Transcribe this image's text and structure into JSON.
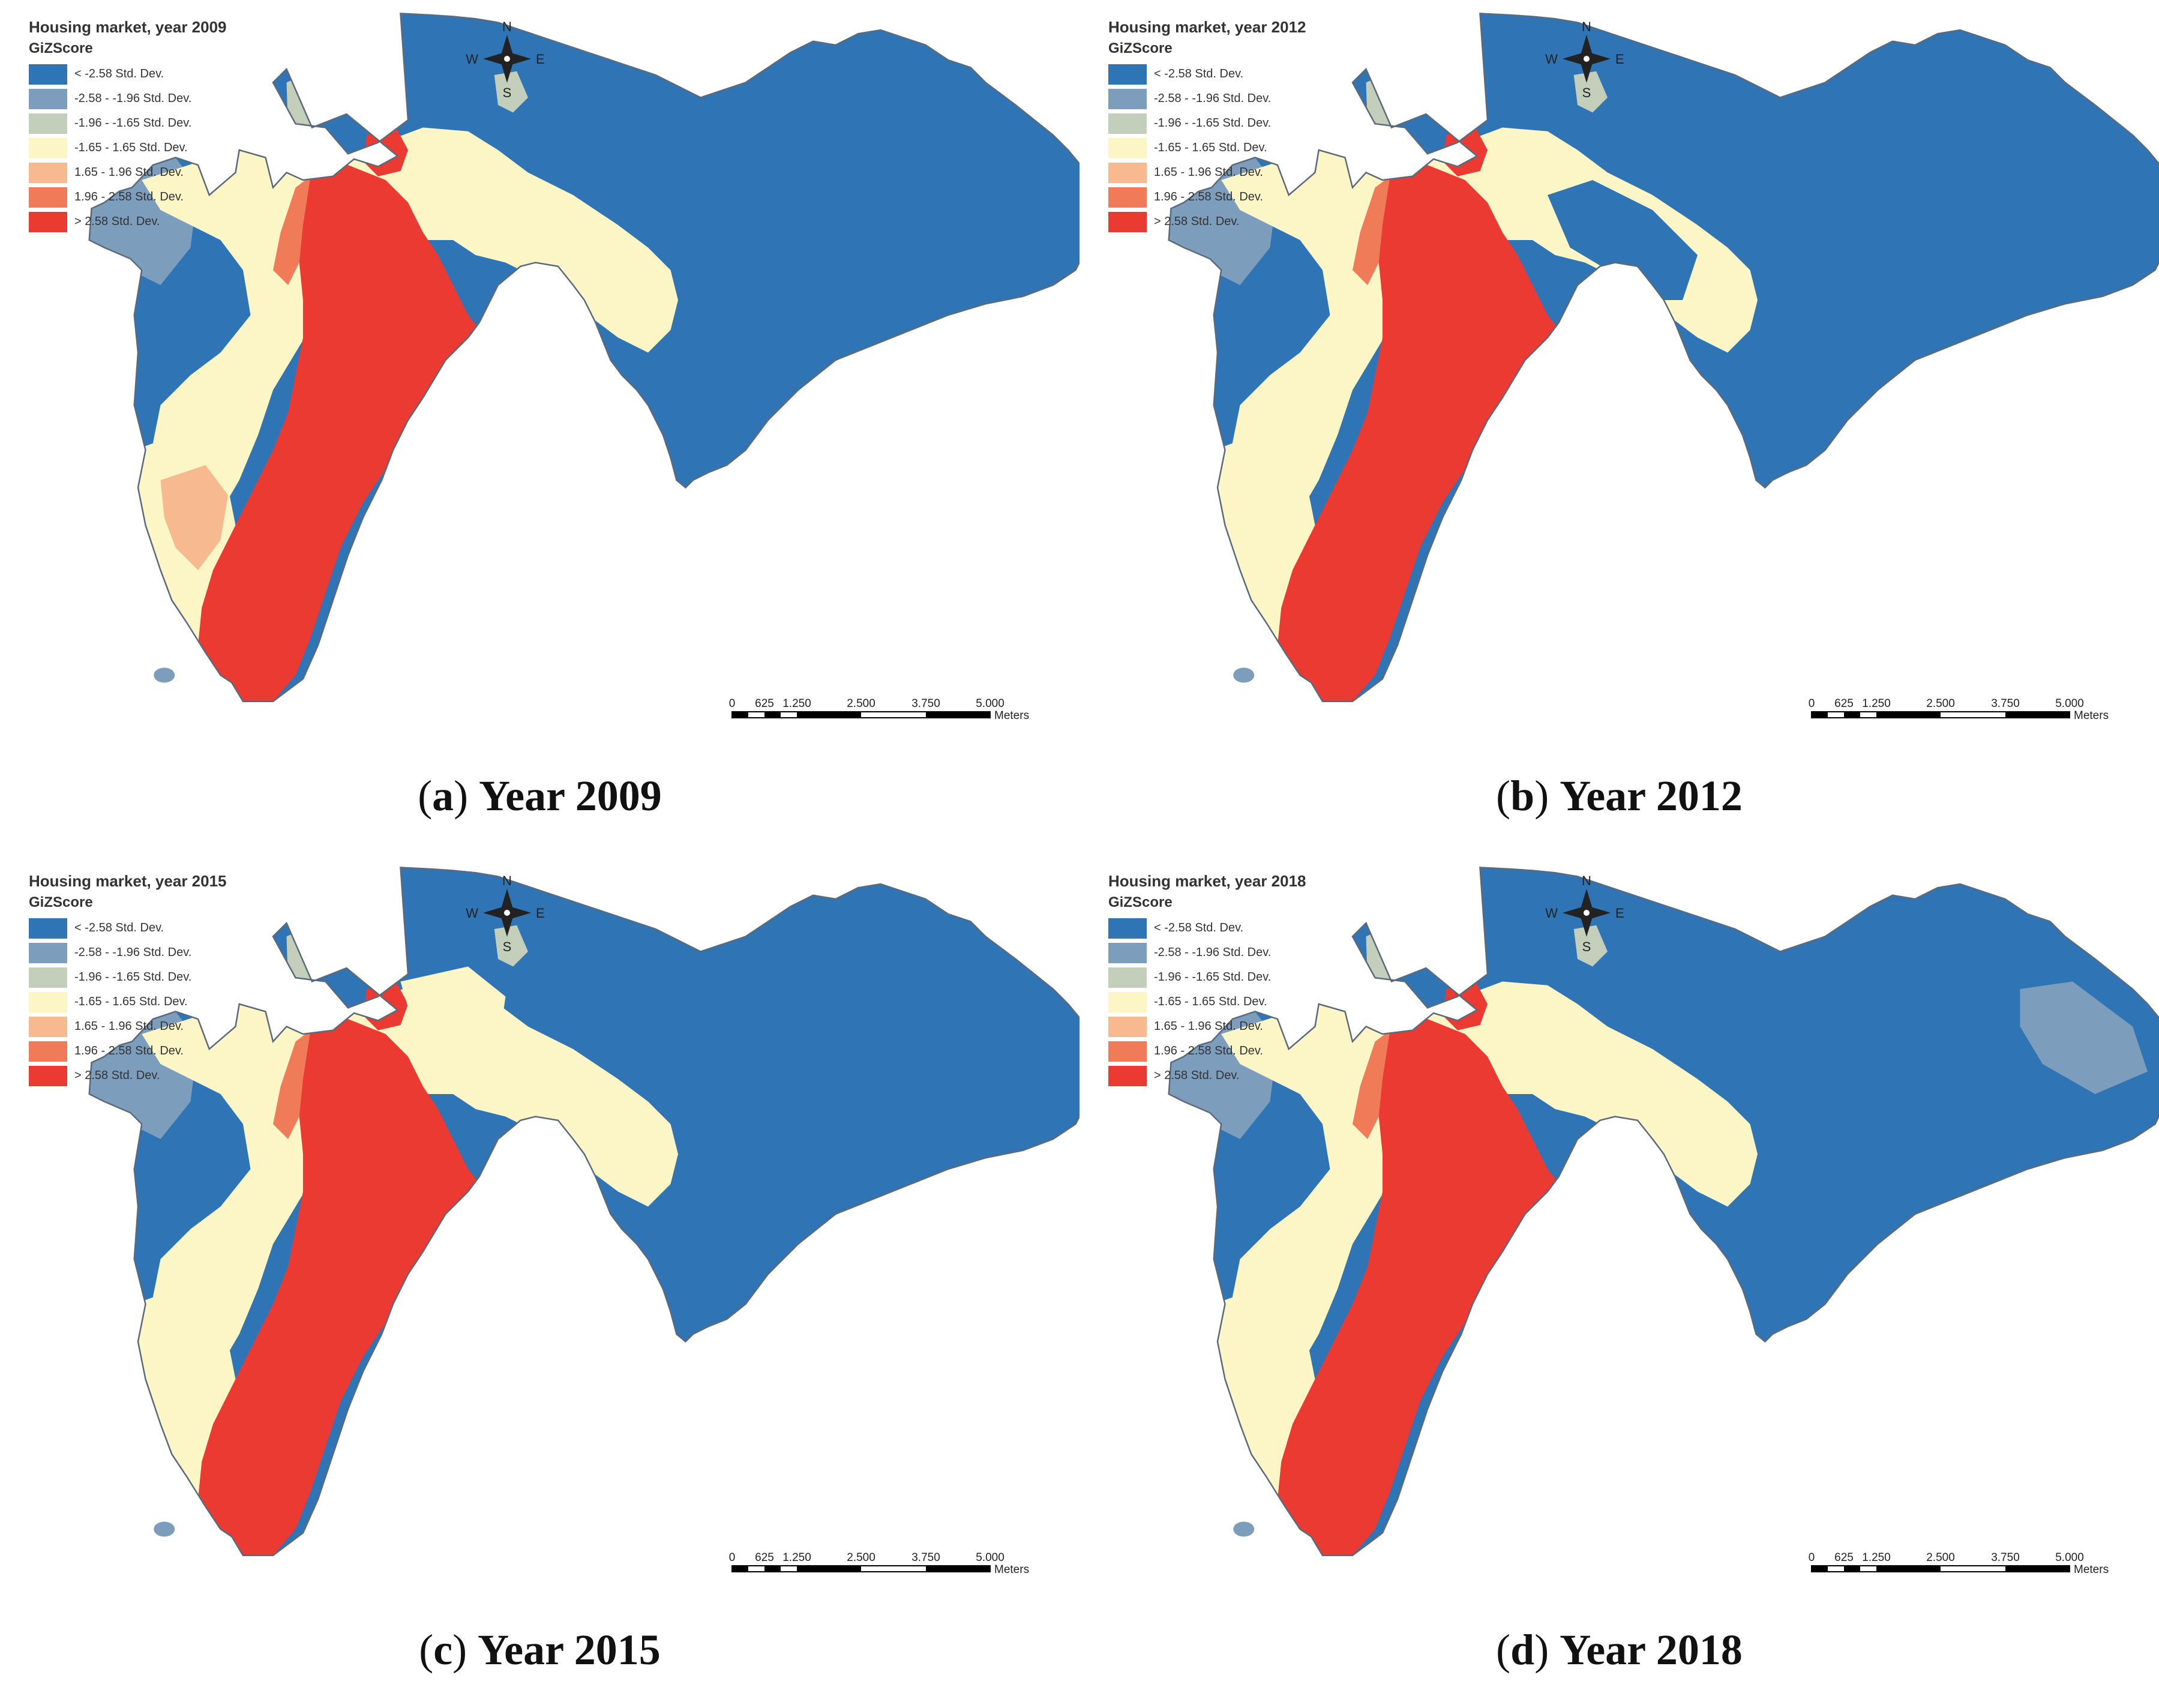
{
  "legend": {
    "title": "GiZScore",
    "classes": [
      {
        "label": "< -2.58 Std. Dev.",
        "color": "#2f75b5"
      },
      {
        "label": "-2.58 - -1.96 Std. Dev.",
        "color": "#7d9dbd"
      },
      {
        "label": "-1.96 - -1.65 Std. Dev.",
        "color": "#c3cebb"
      },
      {
        "label": "-1.65 - 1.65 Std. Dev.",
        "color": "#fcf6c6"
      },
      {
        "label": "1.65 - 1.96 Std. Dev.",
        "color": "#f7b98f"
      },
      {
        "label": "1.96 - 2.58 Std. Dev.",
        "color": "#f07b59"
      },
      {
        "label": "> 2.58 Std. Dev.",
        "color": "#ea3a32"
      }
    ]
  },
  "compass": {
    "n": "N",
    "s": "S",
    "w": "W",
    "e": "E"
  },
  "scalebar": {
    "ticks": [
      "0",
      "625",
      "1.250",
      "2.500",
      "3.750",
      "5.000"
    ],
    "unit": "Meters"
  },
  "panels": [
    {
      "map_title": "Housing market, year 2009",
      "caption_letter": "a",
      "caption_text": "Year 2009",
      "extra": "orange_sw"
    },
    {
      "map_title": "Housing market, year 2012",
      "caption_letter": "b",
      "caption_text": "Year 2012",
      "extra": "blue_ne"
    },
    {
      "map_title": "Housing market, year 2015",
      "caption_letter": "c",
      "caption_text": "Year 2015",
      "extra": "cream_ne"
    },
    {
      "map_title": "Housing market, year 2018",
      "caption_letter": "d",
      "caption_text": "Year 2018",
      "extra": "grey_east"
    }
  ]
}
